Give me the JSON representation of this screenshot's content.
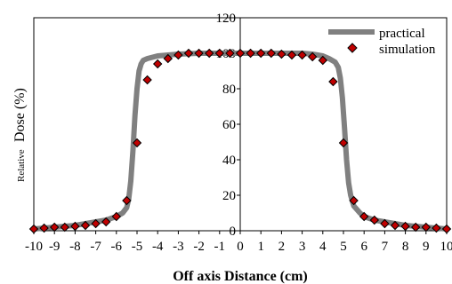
{
  "chart_data": {
    "type": "line",
    "title": "",
    "xlabel": "Off axis Distance (cm)",
    "ylabel_prefix": "Relative",
    "ylabel_main": "Dose (%)",
    "xlim": [
      -10,
      10
    ],
    "ylim": [
      0,
      120
    ],
    "xticks": [
      -10,
      -9,
      -8,
      -7,
      -6,
      -5,
      -4,
      -3,
      -2,
      -1,
      0,
      1,
      2,
      3,
      4,
      5,
      6,
      7,
      8,
      9,
      10
    ],
    "yticks": [
      0,
      20,
      40,
      60,
      80,
      100,
      120
    ],
    "legend_position": "top-right",
    "colors": {
      "practical": "#808080",
      "simulation_fill": "#c00000",
      "simulation_edge": "#000000"
    },
    "series": [
      {
        "name": "practical",
        "style": "thick-line",
        "x": [
          -10,
          -9,
          -8,
          -7,
          -6.5,
          -6,
          -5.7,
          -5.5,
          -5.4,
          -5.3,
          -5.2,
          -5.1,
          -5.0,
          -4.9,
          -4.8,
          -4.7,
          -4.5,
          -4,
          -3,
          -2,
          -1,
          0,
          1,
          2,
          3,
          3.5,
          4,
          4.3,
          4.6,
          4.75,
          4.85,
          4.95,
          5.05,
          5.15,
          5.25,
          5.35,
          5.5,
          5.8,
          6,
          6.5,
          7,
          8,
          9,
          10
        ],
        "y": [
          1,
          2,
          3,
          5,
          6,
          8,
          10,
          13,
          18,
          28,
          45,
          65,
          80,
          90,
          94,
          96,
          97,
          98.5,
          99.5,
          100,
          100,
          100,
          100,
          100,
          100,
          99.5,
          98.5,
          97,
          95,
          92,
          86,
          75,
          58,
          40,
          27,
          20,
          14,
          10,
          8,
          6,
          5,
          3,
          2,
          1
        ]
      },
      {
        "name": "simulation",
        "style": "diamond-markers",
        "x": [
          -10,
          -9.5,
          -9,
          -8.5,
          -8,
          -7.5,
          -7,
          -6.5,
          -6,
          -5.5,
          -5,
          -4.5,
          -4,
          -3.5,
          -3,
          -2.5,
          -2,
          -1.5,
          -1,
          -0.5,
          0,
          0.5,
          1,
          1.5,
          2,
          2.5,
          3,
          3.5,
          4,
          4.5,
          5,
          5.5,
          6,
          6.5,
          7,
          7.5,
          8,
          8.5,
          9,
          9.5,
          10
        ],
        "y": [
          1,
          1.5,
          2,
          2,
          2.5,
          3,
          4,
          5,
          8,
          17,
          49.5,
          85,
          94,
          97,
          99,
          100,
          100,
          100,
          100,
          100,
          100,
          100,
          100,
          100,
          99.5,
          99,
          99,
          98,
          96,
          84,
          49.5,
          17,
          8,
          6,
          4,
          3,
          2.5,
          2,
          2,
          1.5,
          1
        ]
      }
    ]
  }
}
